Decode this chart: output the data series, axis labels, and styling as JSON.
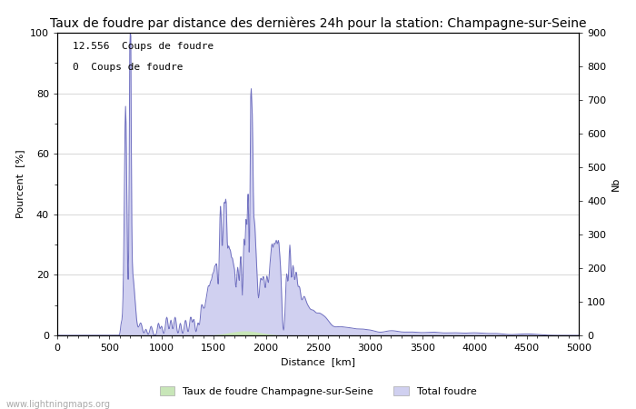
{
  "title": "Taux de foudre par distance des dernières 24h pour la station: Champagne-sur-Seine",
  "xlabel": "Distance  [km]",
  "ylabel_left": "Pourcent  [%]",
  "ylabel_right": "Nb",
  "xlim": [
    0,
    5000
  ],
  "ylim_left": [
    0,
    100
  ],
  "ylim_right": [
    0,
    900
  ],
  "xticks": [
    0,
    500,
    1000,
    1500,
    2000,
    2500,
    3000,
    3500,
    4000,
    4500,
    5000
  ],
  "yticks_left": [
    0,
    20,
    40,
    60,
    80,
    100
  ],
  "yticks_right": [
    0,
    100,
    200,
    300,
    400,
    500,
    600,
    700,
    800,
    900
  ],
  "annotation1": "12.556  Coups de foudre",
  "annotation2": "0  Coups de foudre",
  "legend_label1": "Taux de foudre Champagne-sur-Seine",
  "legend_label2": "Total foudre",
  "color_green": "#c8e6b8",
  "color_blue": "#d0d0f0",
  "color_line": "#7070c0",
  "watermark": "www.lightningmaps.org",
  "bg_color": "#ffffff",
  "grid_color": "#c8c8c8",
  "title_fontsize": 10,
  "label_fontsize": 8,
  "tick_fontsize": 8
}
